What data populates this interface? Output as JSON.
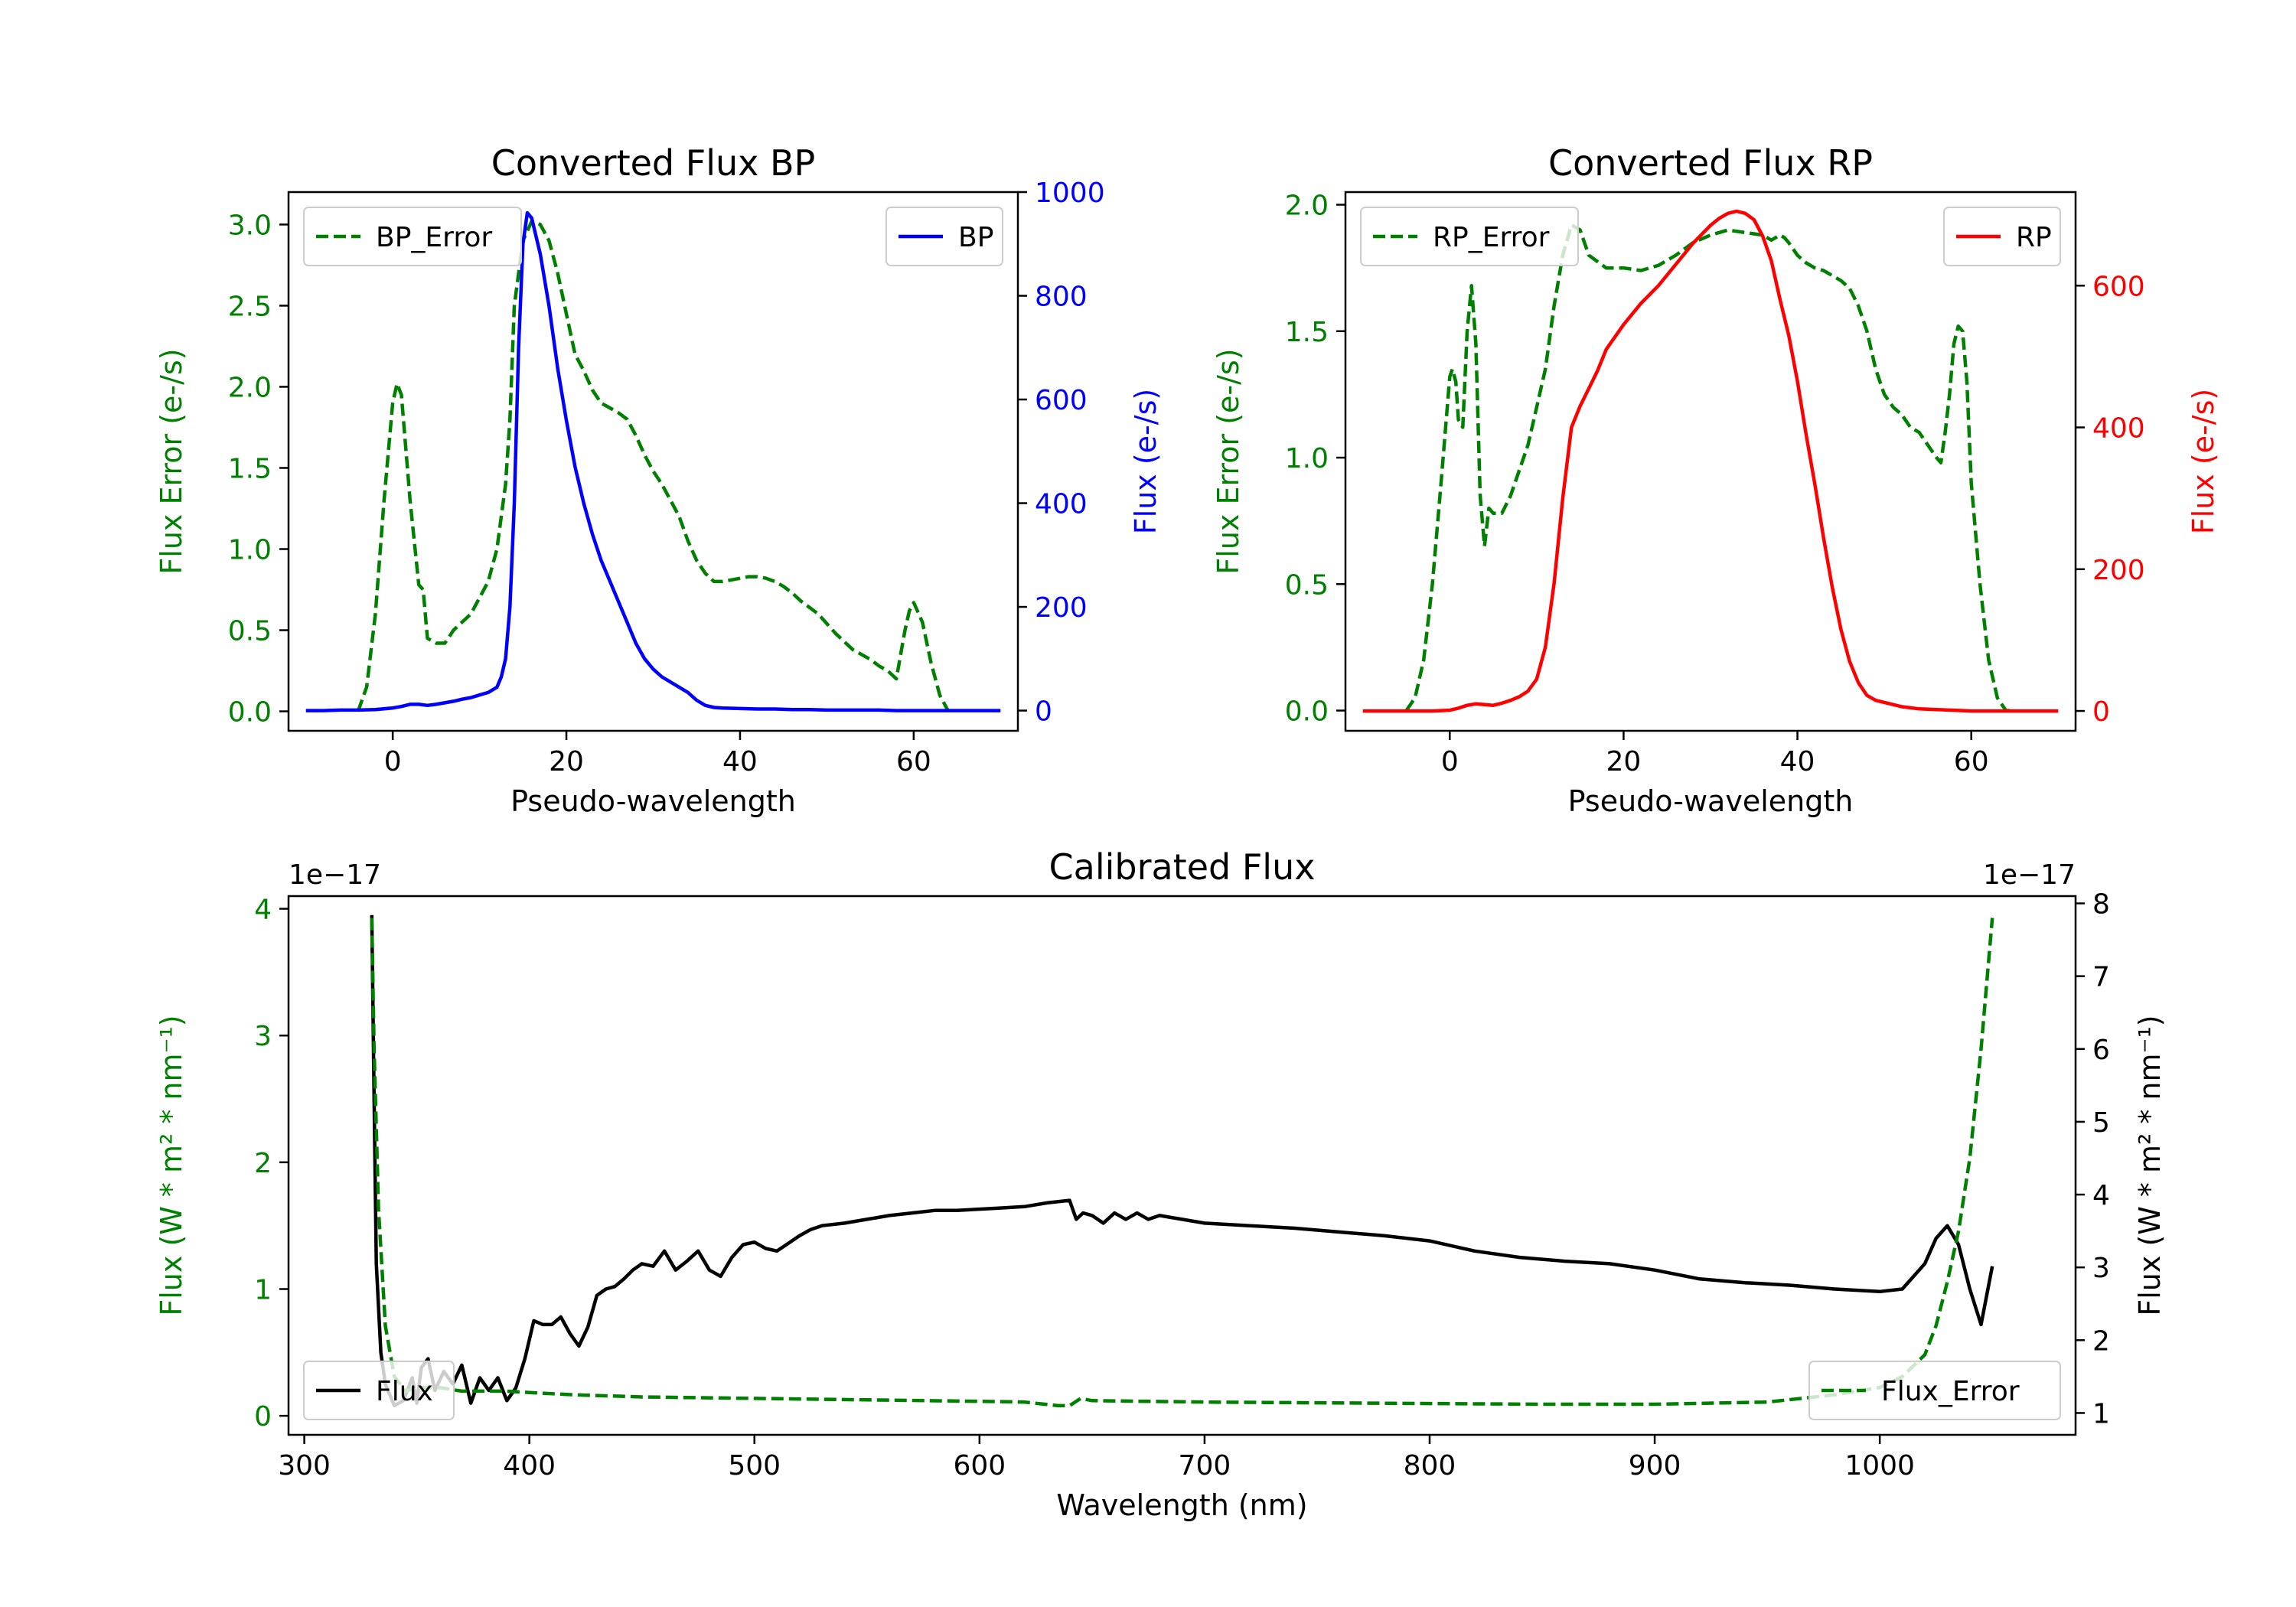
{
  "chart_data": [
    {
      "id": "bp",
      "type": "line",
      "title": "Converted Flux BP",
      "xlabel": "Pseudo-wavelength",
      "xlim": [
        -12,
        72
      ],
      "xticks": [
        0,
        20,
        40,
        60
      ],
      "left_axis": {
        "label": "Flux Error (e-/s)",
        "color": "#008000",
        "ylim": [
          -0.12,
          3.2
        ],
        "ticks": [
          0.0,
          0.5,
          1.0,
          1.5,
          2.0,
          2.5,
          3.0
        ],
        "tick_labels": [
          "0.0",
          "0.5",
          "1.0",
          "1.5",
          "2.0",
          "2.5",
          "3.0"
        ]
      },
      "right_axis": {
        "label": "Flux (e-/s)",
        "color": "#0000ff",
        "ylim": [
          -39,
          1000
        ],
        "ticks": [
          0,
          200,
          400,
          600,
          800,
          1000
        ],
        "tick_labels": [
          "0",
          "200",
          "400",
          "600",
          "800",
          "1000"
        ]
      },
      "series": [
        {
          "name": "BP_Error",
          "axis": "left",
          "color": "#008000",
          "dash": "dashed",
          "legend": "upper left",
          "x": [
            -4,
            -3,
            -2,
            -1,
            0,
            0.5,
            1,
            2,
            3,
            3.5,
            4,
            5,
            6,
            7,
            8,
            9,
            10,
            11,
            12,
            13,
            13.5,
            14,
            15,
            16,
            17,
            18,
            19,
            20,
            21,
            22,
            23,
            24,
            25,
            26,
            27,
            28,
            29,
            30,
            31,
            32,
            33,
            34,
            35,
            36,
            37,
            38,
            39,
            40,
            41,
            42,
            43,
            44,
            45,
            46,
            47,
            48,
            49,
            50,
            51,
            52,
            53,
            54,
            55,
            56,
            57,
            58,
            58.5,
            59,
            59.5,
            60,
            61,
            62,
            63,
            64
          ],
          "y": [
            0.0,
            0.15,
            0.6,
            1.3,
            1.9,
            2.02,
            1.95,
            1.3,
            0.78,
            0.75,
            0.45,
            0.42,
            0.42,
            0.5,
            0.55,
            0.6,
            0.7,
            0.8,
            1.0,
            1.4,
            1.8,
            2.5,
            2.9,
            3.02,
            3.0,
            2.9,
            2.7,
            2.45,
            2.2,
            2.1,
            1.98,
            1.9,
            1.87,
            1.84,
            1.8,
            1.7,
            1.58,
            1.48,
            1.4,
            1.3,
            1.2,
            1.05,
            0.93,
            0.85,
            0.8,
            0.8,
            0.81,
            0.82,
            0.83,
            0.83,
            0.82,
            0.8,
            0.77,
            0.73,
            0.68,
            0.64,
            0.6,
            0.54,
            0.48,
            0.43,
            0.38,
            0.35,
            0.32,
            0.28,
            0.25,
            0.2,
            0.35,
            0.5,
            0.62,
            0.67,
            0.55,
            0.3,
            0.1,
            0.0
          ]
        },
        {
          "name": "BP",
          "axis": "right",
          "color": "#0000ff",
          "dash": "solid",
          "legend": "upper right",
          "x": [
            -10,
            -8,
            -6,
            -4,
            -2,
            0,
            1,
            2,
            3,
            4,
            5,
            6,
            7,
            8,
            9,
            10,
            11,
            12,
            12.5,
            13,
            13.5,
            14,
            14.5,
            15,
            15.5,
            16,
            17,
            18,
            19,
            20,
            21,
            22,
            23,
            24,
            25,
            26,
            27,
            28,
            29,
            30,
            31,
            32,
            33,
            34,
            35,
            36,
            37,
            38,
            40,
            42,
            44,
            46,
            48,
            50,
            52,
            54,
            56,
            58,
            60,
            62,
            64,
            66,
            68,
            70
          ],
          "y": [
            0,
            0,
            1,
            1,
            2,
            5,
            8,
            12,
            12,
            10,
            12,
            15,
            18,
            22,
            25,
            30,
            35,
            45,
            65,
            100,
            200,
            400,
            700,
            900,
            960,
            950,
            880,
            780,
            660,
            560,
            470,
            400,
            340,
            290,
            250,
            210,
            170,
            130,
            100,
            80,
            65,
            55,
            45,
            35,
            20,
            10,
            6,
            5,
            4,
            3,
            3,
            2,
            2,
            1,
            1,
            1,
            1,
            0,
            0,
            0,
            0,
            0,
            0,
            0
          ]
        }
      ]
    },
    {
      "id": "rp",
      "type": "line",
      "title": "Converted Flux RP",
      "xlabel": "Pseudo-wavelength",
      "xlim": [
        -12,
        72
      ],
      "xticks": [
        0,
        20,
        40,
        60
      ],
      "left_axis": {
        "label": "Flux Error (e-/s)",
        "color": "#008000",
        "ylim": [
          -0.08,
          2.05
        ],
        "ticks": [
          0.0,
          0.5,
          1.0,
          1.5,
          2.0
        ],
        "tick_labels": [
          "0.0",
          "0.5",
          "1.0",
          "1.5",
          "2.0"
        ]
      },
      "right_axis": {
        "label": "Flux (e-/s)",
        "color": "#ff0000",
        "ylim": [
          -28,
          732
        ],
        "ticks": [
          0,
          200,
          400,
          600
        ],
        "tick_labels": [
          "0",
          "200",
          "400",
          "600"
        ]
      },
      "series": [
        {
          "name": "RP_Error",
          "axis": "left",
          "color": "#008000",
          "dash": "dashed",
          "legend": "upper left",
          "x": [
            -5,
            -4,
            -3,
            -2,
            -1,
            0,
            0.3,
            0.7,
            1,
            1.5,
            2,
            2.5,
            3,
            3.5,
            4,
            4.5,
            5,
            6,
            7,
            8,
            9,
            10,
            11,
            12,
            13,
            14,
            15,
            16,
            18,
            20,
            22,
            24,
            26,
            28,
            30,
            32,
            34,
            36,
            37,
            38,
            38.5,
            39,
            40,
            41,
            42,
            43,
            44,
            45,
            46,
            47,
            48,
            49,
            50,
            51,
            52,
            53,
            54,
            55,
            56,
            56.5,
            57,
            57.5,
            58,
            58.5,
            59,
            59.5,
            60,
            61,
            62,
            63,
            64,
            65
          ],
          "y": [
            0.0,
            0.05,
            0.2,
            0.5,
            0.9,
            1.32,
            1.35,
            1.3,
            1.15,
            1.12,
            1.5,
            1.68,
            1.45,
            0.85,
            0.65,
            0.8,
            0.78,
            0.78,
            0.85,
            0.95,
            1.05,
            1.2,
            1.35,
            1.6,
            1.8,
            1.92,
            1.9,
            1.8,
            1.75,
            1.75,
            1.74,
            1.76,
            1.8,
            1.85,
            1.88,
            1.9,
            1.89,
            1.88,
            1.86,
            1.88,
            1.87,
            1.85,
            1.8,
            1.77,
            1.75,
            1.74,
            1.72,
            1.7,
            1.67,
            1.6,
            1.5,
            1.35,
            1.25,
            1.2,
            1.17,
            1.12,
            1.1,
            1.05,
            1.0,
            0.98,
            1.1,
            1.25,
            1.45,
            1.52,
            1.5,
            1.3,
            0.9,
            0.5,
            0.2,
            0.05,
            0.0,
            0.0
          ]
        },
        {
          "name": "RP",
          "axis": "right",
          "color": "#ff0000",
          "dash": "solid",
          "legend": "upper right",
          "x": [
            -10,
            -5,
            -2,
            0,
            1,
            2,
            3,
            4,
            5,
            6,
            7,
            8,
            9,
            10,
            11,
            12,
            13,
            14,
            15,
            16,
            17,
            18,
            20,
            22,
            24,
            26,
            28,
            30,
            31,
            32,
            33,
            34,
            35,
            36,
            37,
            38,
            39,
            40,
            41,
            42,
            43,
            44,
            45,
            46,
            47,
            48,
            49,
            50,
            51,
            52,
            54,
            56,
            58,
            60,
            62,
            65,
            70
          ],
          "y": [
            0,
            0,
            0,
            1,
            4,
            8,
            10,
            9,
            8,
            11,
            15,
            20,
            28,
            45,
            90,
            180,
            300,
            400,
            430,
            455,
            480,
            510,
            545,
            575,
            600,
            630,
            660,
            685,
            695,
            702,
            705,
            702,
            693,
            670,
            635,
            580,
            530,
            465,
            390,
            320,
            245,
            175,
            115,
            70,
            40,
            22,
            15,
            12,
            9,
            6,
            3,
            2,
            1,
            0,
            0,
            0,
            0
          ]
        }
      ]
    },
    {
      "id": "cal",
      "type": "line",
      "title": "Calibrated Flux",
      "xlabel": "Wavelength (nm)",
      "xlim": [
        293,
        1087
      ],
      "xticks": [
        300,
        400,
        500,
        600,
        700,
        800,
        900,
        1000
      ],
      "left_axis": {
        "label": "Flux (W * m² * nm⁻¹)",
        "color": "#008000",
        "ylim": [
          -0.15,
          4.1
        ],
        "ticks": [
          0,
          1,
          2,
          3,
          4
        ],
        "tick_labels": [
          "0",
          "1",
          "2",
          "3",
          "4"
        ],
        "offset_text": "1e−17"
      },
      "right_axis": {
        "label": "Flux (W * m² * nm⁻¹)",
        "color": "#000000",
        "ylim": [
          0.7,
          8.1
        ],
        "ticks": [
          1,
          2,
          3,
          4,
          5,
          6,
          7,
          8
        ],
        "tick_labels": [
          "1",
          "2",
          "3",
          "4",
          "5",
          "6",
          "7",
          "8"
        ],
        "offset_text": "1e−17"
      },
      "series": [
        {
          "name": "Flux",
          "axis": "left",
          "color": "#000000",
          "dash": "solid",
          "legend": "lower left",
          "x": [
            330,
            331,
            332,
            334,
            336,
            340,
            344,
            348,
            350,
            352,
            355,
            358,
            362,
            366,
            370,
            374,
            378,
            382,
            386,
            390,
            394,
            398,
            402,
            406,
            410,
            414,
            418,
            422,
            426,
            430,
            434,
            438,
            442,
            446,
            450,
            455,
            460,
            465,
            470,
            475,
            480,
            485,
            490,
            495,
            500,
            505,
            510,
            515,
            520,
            525,
            530,
            540,
            550,
            560,
            570,
            580,
            590,
            600,
            610,
            620,
            630,
            640,
            643,
            646,
            650,
            655,
            660,
            665,
            670,
            675,
            680,
            690,
            700,
            720,
            740,
            760,
            780,
            800,
            820,
            840,
            860,
            880,
            900,
            920,
            940,
            960,
            980,
            1000,
            1010,
            1020,
            1025,
            1030,
            1035,
            1040,
            1045,
            1050
          ],
          "y": [
            3.95,
            2.5,
            1.2,
            0.5,
            0.25,
            0.08,
            0.12,
            0.3,
            0.1,
            0.38,
            0.45,
            0.2,
            0.35,
            0.25,
            0.4,
            0.1,
            0.3,
            0.2,
            0.3,
            0.12,
            0.22,
            0.45,
            0.75,
            0.72,
            0.72,
            0.78,
            0.65,
            0.55,
            0.7,
            0.95,
            1.0,
            1.02,
            1.08,
            1.15,
            1.2,
            1.18,
            1.3,
            1.15,
            1.22,
            1.3,
            1.15,
            1.1,
            1.25,
            1.35,
            1.37,
            1.32,
            1.3,
            1.36,
            1.42,
            1.47,
            1.5,
            1.52,
            1.55,
            1.58,
            1.6,
            1.62,
            1.62,
            1.63,
            1.64,
            1.65,
            1.68,
            1.7,
            1.55,
            1.6,
            1.58,
            1.52,
            1.6,
            1.55,
            1.6,
            1.55,
            1.58,
            1.55,
            1.52,
            1.5,
            1.48,
            1.45,
            1.42,
            1.38,
            1.3,
            1.25,
            1.22,
            1.2,
            1.15,
            1.08,
            1.05,
            1.03,
            1.0,
            0.98,
            1.0,
            1.2,
            1.4,
            1.5,
            1.35,
            1.0,
            0.72,
            1.18
          ]
        },
        {
          "name": "Flux_Error",
          "axis": "right",
          "color": "#008000",
          "dash": "dashed",
          "legend": "lower right",
          "x": [
            330,
            331,
            333,
            336,
            340,
            345,
            350,
            360,
            370,
            380,
            390,
            400,
            420,
            450,
            500,
            550,
            600,
            620,
            635,
            640,
            645,
            650,
            700,
            800,
            850,
            900,
            950,
            980,
            1000,
            1010,
            1020,
            1025,
            1030,
            1035,
            1040,
            1045,
            1050
          ],
          "y": [
            7.8,
            6.0,
            3.8,
            2.2,
            1.5,
            1.3,
            1.35,
            1.35,
            1.3,
            1.3,
            1.3,
            1.28,
            1.25,
            1.22,
            1.2,
            1.18,
            1.16,
            1.15,
            1.1,
            1.1,
            1.2,
            1.17,
            1.15,
            1.13,
            1.12,
            1.12,
            1.15,
            1.25,
            1.35,
            1.5,
            1.8,
            2.2,
            2.8,
            3.5,
            4.5,
            6.0,
            7.8
          ]
        }
      ]
    }
  ]
}
